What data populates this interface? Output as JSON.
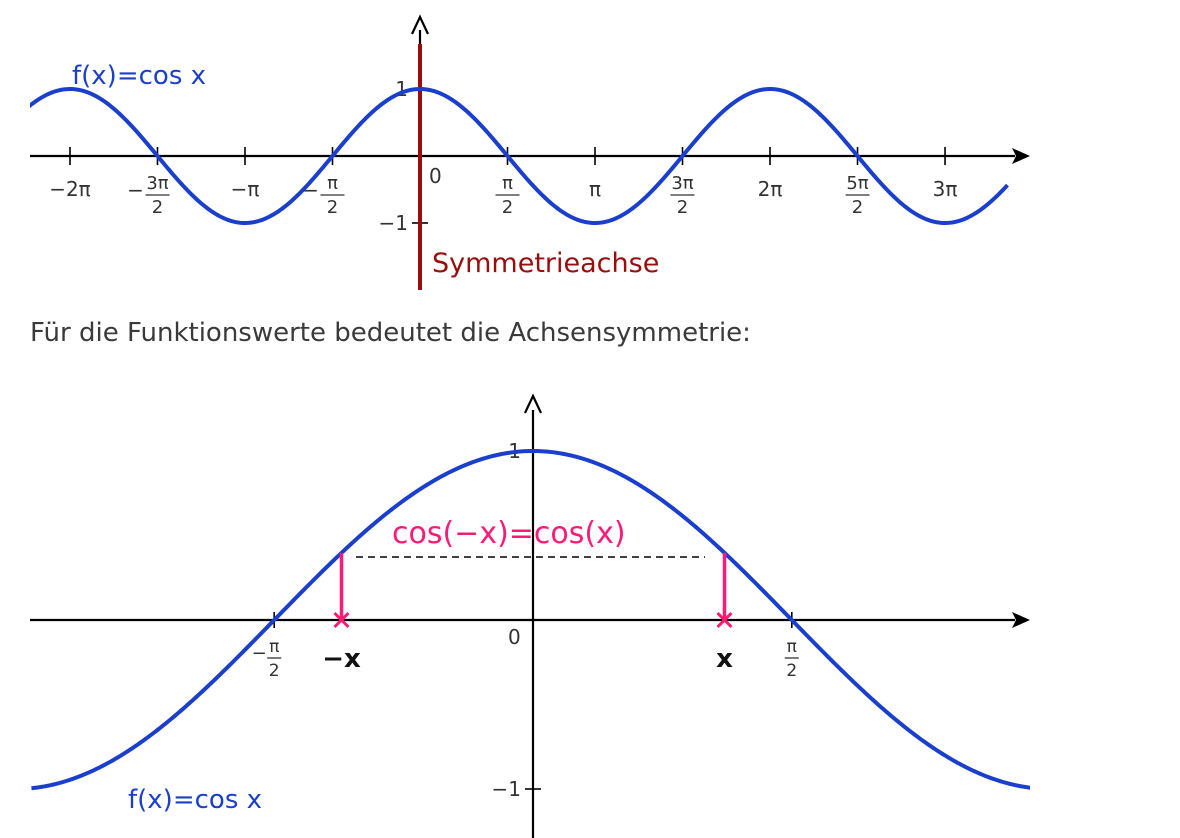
{
  "caption": "Für die Funktionswerte bedeutet die Achsensymmetrie:",
  "colors": {
    "curve": "#1a3fcc",
    "symmetry_axis": "#9b0d0d",
    "highlight": "#ff1a75",
    "axis": "#000000",
    "text": "#333333"
  },
  "chart_data": [
    {
      "type": "line",
      "title": "",
      "function_label": "f(x)=cos x",
      "symmetry_label": "Symmetrieachse",
      "xlim": [
        -2.357,
        3.357
      ],
      "ylim": [
        -1.3,
        2.0
      ],
      "x_unit": "multiples of pi",
      "series": [
        {
          "name": "f(x)=cos x",
          "function": "cos",
          "x_range": [
            -2.357,
            3.357
          ]
        }
      ],
      "x_ticks": [
        {
          "value": -2.0,
          "label": "−2π"
        },
        {
          "value": -1.5,
          "sign": "−",
          "num": "3π",
          "den": "2"
        },
        {
          "value": -1.0,
          "label": "−π"
        },
        {
          "value": -0.5,
          "sign": "−",
          "num": "π",
          "den": "2"
        },
        {
          "value": 0.5,
          "num": "π",
          "den": "2"
        },
        {
          "value": 1.0,
          "label": "π"
        },
        {
          "value": 1.5,
          "num": "3π",
          "den": "2"
        },
        {
          "value": 2.0,
          "label": "2π"
        },
        {
          "value": 2.5,
          "num": "5π",
          "den": "2"
        },
        {
          "value": 3.0,
          "label": "3π"
        }
      ],
      "y_ticks": [
        {
          "value": 1,
          "label": "1"
        },
        {
          "value": -1,
          "label": "−1"
        }
      ],
      "origin_label": "0",
      "symmetry_axis_x": 0
    },
    {
      "type": "line",
      "title": "",
      "function_label": "f(x)=cos x",
      "equation_label": "cos(−x)=cos(x)",
      "xlim": [
        -0.969,
        0.963
      ],
      "ylim": [
        -1.15,
        1.33
      ],
      "x_unit": "multiples of pi",
      "series": [
        {
          "name": "f(x)=cos x",
          "function": "cos",
          "x_range": [
            -0.969,
            0.963
          ]
        }
      ],
      "x_ticks": [
        {
          "value": -0.5,
          "sign": "−",
          "num": "π",
          "den": "2"
        },
        {
          "value": 0.5,
          "num": "π",
          "den": "2"
        }
      ],
      "y_ticks": [
        {
          "value": 1,
          "label": "1"
        },
        {
          "value": -1,
          "label": "−1"
        }
      ],
      "origin_label": "0",
      "marked_points": [
        {
          "x": -0.37,
          "label": "−x"
        },
        {
          "x": 0.37,
          "label": "x"
        }
      ]
    }
  ]
}
